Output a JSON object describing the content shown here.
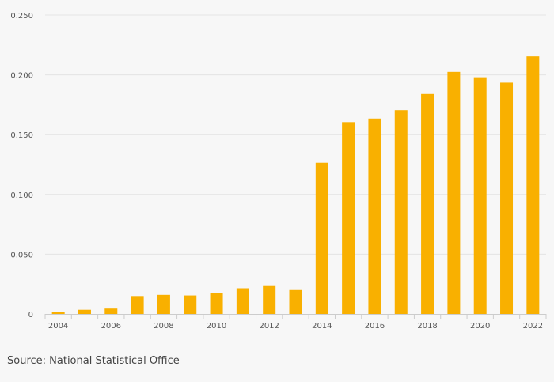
{
  "chart_data": {
    "type": "bar",
    "title": "",
    "xlabel": "",
    "ylabel": "",
    "categories": [
      "2004",
      "2005",
      "2006",
      "2007",
      "2008",
      "2009",
      "2010",
      "2011",
      "2012",
      "2013",
      "2014",
      "2015",
      "2016",
      "2017",
      "2018",
      "2019",
      "2020",
      "2021",
      "2022"
    ],
    "x_tick_labels": [
      "2004",
      "2006",
      "2008",
      "2010",
      "2012",
      "2014",
      "2016",
      "2018",
      "2020",
      "2022"
    ],
    "values": [
      0.0015,
      0.0035,
      0.0045,
      0.015,
      0.016,
      0.0155,
      0.0175,
      0.0215,
      0.024,
      0.02,
      0.1265,
      0.1605,
      0.1635,
      0.1705,
      0.184,
      0.2025,
      0.198,
      0.1935,
      0.2155
    ],
    "ylim": [
      0,
      0.25
    ],
    "y_ticks": [
      0,
      0.05,
      0.1,
      0.15,
      0.2,
      0.25
    ],
    "y_tick_labels": [
      "0",
      "0.050",
      "0.100",
      "0.150",
      "0.200",
      "0.250"
    ],
    "grid": true,
    "bar_color": "#f9b000"
  },
  "footer": {
    "source": "Source: National Statistical Office"
  }
}
